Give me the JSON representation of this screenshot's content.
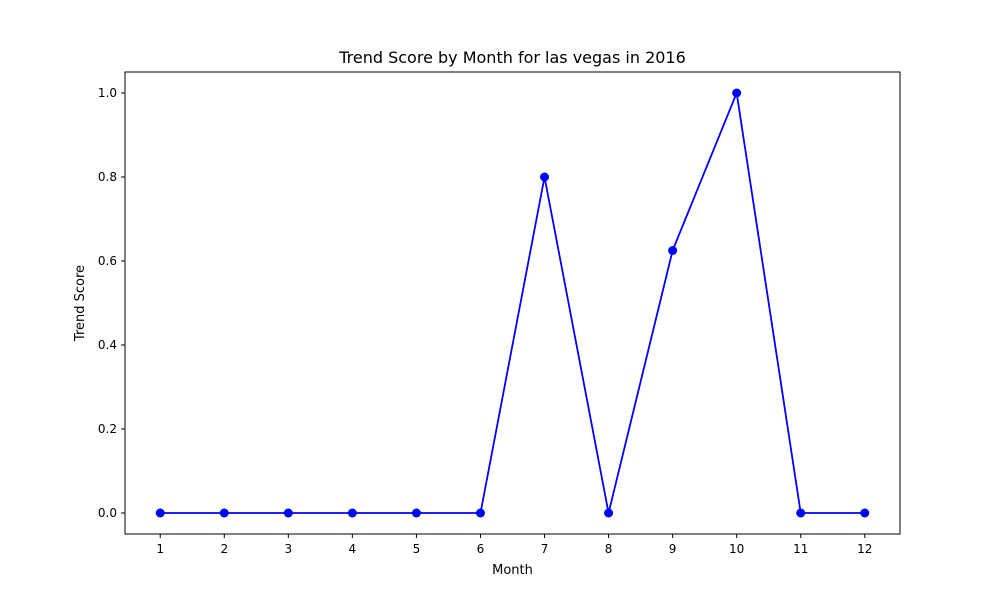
{
  "chart_data": {
    "type": "line",
    "title": "Trend Score by Month for las vegas in 2016",
    "xlabel": "Month",
    "ylabel": "Trend Score",
    "x": [
      1,
      2,
      3,
      4,
      5,
      6,
      7,
      8,
      9,
      10,
      11,
      12
    ],
    "x_tick_labels": [
      "1",
      "2",
      "3",
      "4",
      "5",
      "6",
      "7",
      "8",
      "9",
      "10",
      "11",
      "12"
    ],
    "y_ticks": [
      0.0,
      0.2,
      0.4,
      0.6,
      0.8,
      1.0
    ],
    "y_tick_labels": [
      "0.0",
      "0.2",
      "0.4",
      "0.6",
      "0.8",
      "1.0"
    ],
    "xlim": [
      0.45,
      12.55
    ],
    "ylim": [
      -0.05,
      1.05
    ],
    "grid": false,
    "series": [
      {
        "values": [
          0,
          0,
          0,
          0,
          0,
          0,
          0.8,
          0,
          0.625,
          1.0,
          0,
          0
        ],
        "color": "#0000ff",
        "marker": "circle"
      }
    ]
  }
}
